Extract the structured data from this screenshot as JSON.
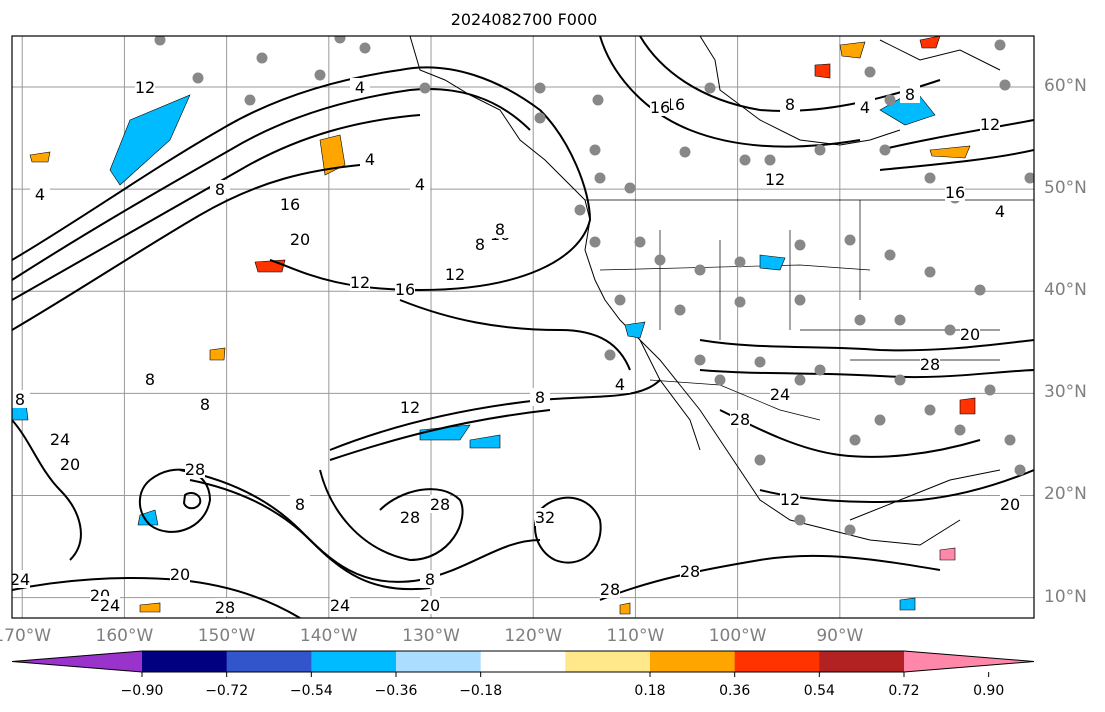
{
  "title": "2024082700 F000",
  "map": {
    "lat_labels": [
      {
        "text": "60°N",
        "lat": 60
      },
      {
        "text": "50°N",
        "lat": 50
      },
      {
        "text": "40°N",
        "lat": 40
      },
      {
        "text": "30°N",
        "lat": 30
      },
      {
        "text": "20°N",
        "lat": 20
      },
      {
        "text": "10°N",
        "lat": 10
      }
    ],
    "lon_labels": [
      {
        "text": "170°W",
        "lon": -170
      },
      {
        "text": "160°W",
        "lon": -160
      },
      {
        "text": "150°W",
        "lon": -150
      },
      {
        "text": "140°W",
        "lon": -140
      },
      {
        "text": "130°W",
        "lon": -130
      },
      {
        "text": "120°W",
        "lon": -120
      },
      {
        "text": "110°W",
        "lon": -110
      },
      {
        "text": "100°W",
        "lon": -100
      },
      {
        "text": "90°W",
        "lon": -90
      }
    ],
    "extent": {
      "lon_min": -171,
      "lon_max": -71,
      "lat_min": 8,
      "lat_max": 65
    },
    "contour_labels": [
      "12",
      "4",
      "8",
      "16",
      "20",
      "24",
      "28",
      "32"
    ]
  },
  "colorbar": {
    "ticks": [
      "−0.90",
      "−0.72",
      "−0.54",
      "−0.36",
      "−0.18",
      "0.18",
      "0.36",
      "0.54",
      "0.72",
      "0.90"
    ],
    "colors": [
      "#9933cc",
      "#000080",
      "#3355cc",
      "#00bbff",
      "#aaddff",
      "#ffffff",
      "#ffe88a",
      "#ffa500",
      "#ff3300",
      "#b22222",
      "#ff88aa"
    ]
  }
}
